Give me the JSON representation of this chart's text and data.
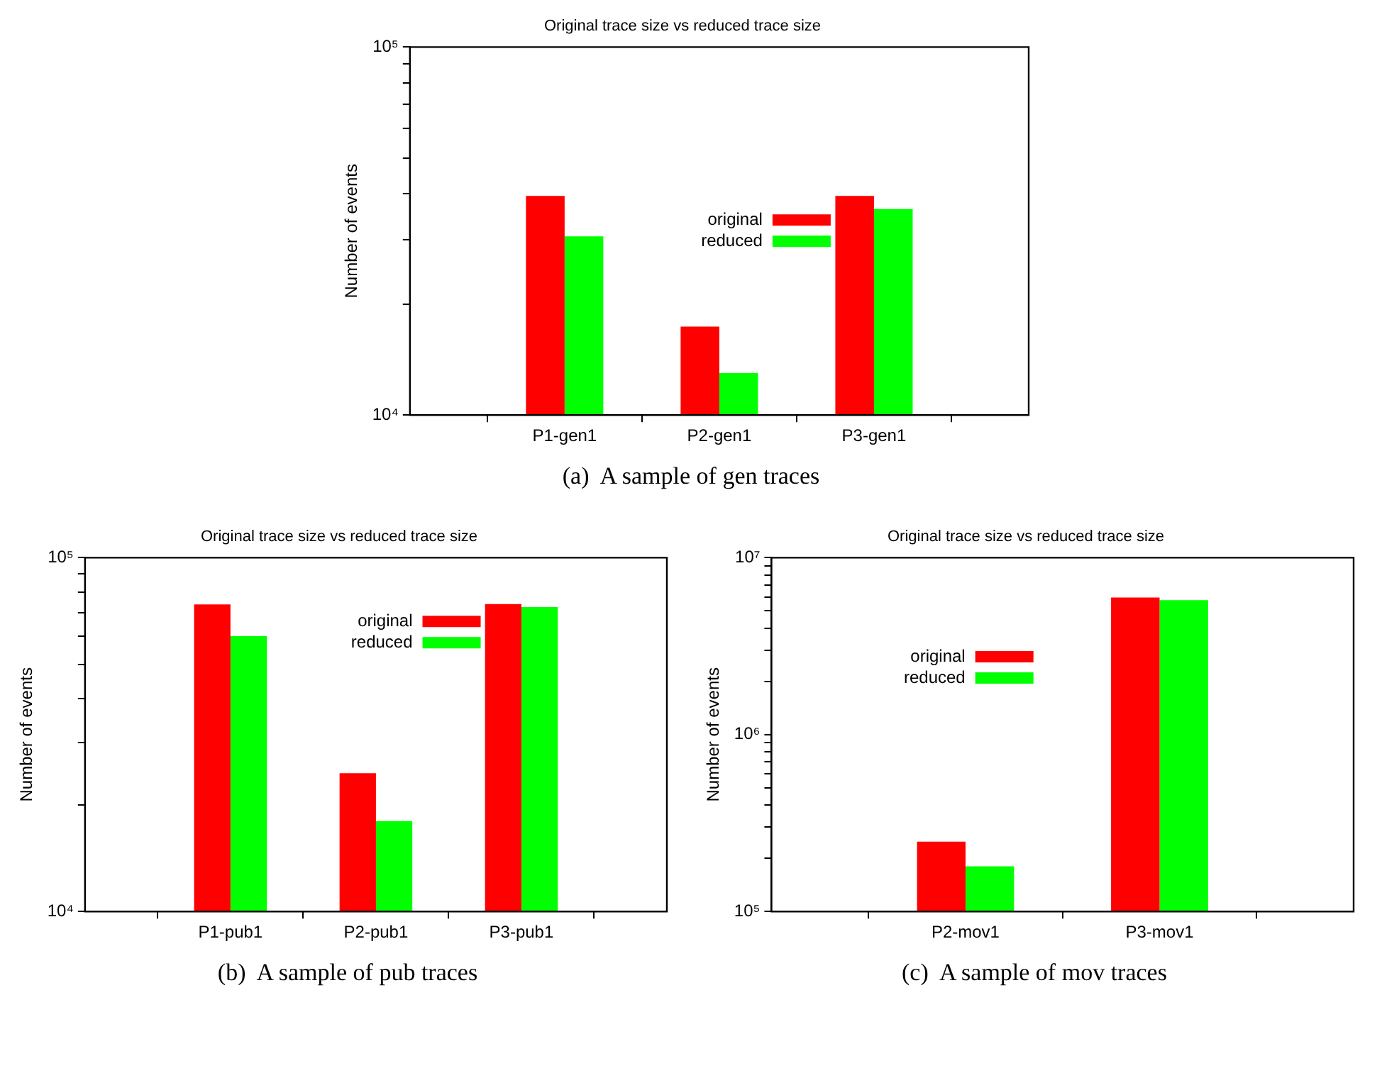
{
  "chart_data": [
    {
      "type": "bar",
      "title": "Original trace size vs reduced trace size",
      "ylabel": "Number of events",
      "categories": [
        null,
        "P1-gen1",
        "P2-gen1",
        "P3-gen1",
        null
      ],
      "series": [
        {
          "name": "original",
          "color": "#ff0000",
          "values": [
            null,
            39400,
            17400,
            39400,
            null
          ]
        },
        {
          "name": "reduced",
          "color": "#00ff00",
          "values": [
            null,
            30600,
            13000,
            36300,
            null
          ]
        }
      ],
      "log": "y",
      "ylim": [
        10000,
        100000
      ],
      "yticks": [
        {
          "value": 10000,
          "label": "10⁴"
        },
        {
          "value": 20000,
          "label": null
        },
        {
          "value": 30000,
          "label": null
        },
        {
          "value": 40000,
          "label": null
        },
        {
          "value": 50000,
          "label": null
        },
        {
          "value": 60000,
          "label": null
        },
        {
          "value": 70000,
          "label": null
        },
        {
          "value": 80000,
          "label": null
        },
        {
          "value": 90000,
          "label": null
        },
        {
          "value": 100000,
          "label": "10⁵"
        }
      ],
      "legend": "center",
      "annotations": [
        "(a)  A sample of gen traces"
      ]
    },
    {
      "type": "bar",
      "title": "Original trace size vs reduced trace size",
      "ylabel": "Number of events",
      "categories": [
        null,
        "P1-pub1",
        "P2-pub1",
        "P3-pub1",
        null
      ],
      "series": [
        {
          "name": "original",
          "color": "#ff0000",
          "values": [
            null,
            73800,
            24600,
            74000,
            null
          ]
        },
        {
          "name": "reduced",
          "color": "#00ff00",
          "values": [
            null,
            60000,
            18000,
            72500,
            null
          ]
        }
      ],
      "log": "y",
      "ylim": [
        10000,
        100000
      ],
      "yticks": [
        {
          "value": 10000,
          "label": "10⁴"
        },
        {
          "value": 20000,
          "label": null
        },
        {
          "value": 30000,
          "label": null
        },
        {
          "value": 40000,
          "label": null
        },
        {
          "value": 50000,
          "label": null
        },
        {
          "value": 60000,
          "label": null
        },
        {
          "value": 70000,
          "label": null
        },
        {
          "value": 80000,
          "label": null
        },
        {
          "value": 90000,
          "label": null
        },
        {
          "value": 100000,
          "label": "10⁵"
        }
      ],
      "legend": "top right",
      "annotations": [
        "(b)  A sample of pub traces"
      ]
    },
    {
      "type": "bar",
      "title": "Original trace size vs reduced trace size",
      "ylabel": "Number of events",
      "categories": [
        null,
        "P2-mov1",
        "P3-mov1",
        null
      ],
      "series": [
        {
          "name": "original",
          "color": "#ff0000",
          "values": [
            null,
            248000,
            5960000,
            null
          ]
        },
        {
          "name": "reduced",
          "color": "#00ff00",
          "values": [
            null,
            180000,
            5750000,
            null
          ]
        }
      ],
      "log": "y",
      "ylim": [
        100000,
        10000000
      ],
      "yticks": [
        {
          "value": 100000,
          "label": "10⁵"
        },
        {
          "value": 200000,
          "label": null
        },
        {
          "value": 300000,
          "label": null
        },
        {
          "value": 400000,
          "label": null
        },
        {
          "value": 500000,
          "label": null
        },
        {
          "value": 600000,
          "label": null
        },
        {
          "value": 700000,
          "label": null
        },
        {
          "value": 800000,
          "label": null
        },
        {
          "value": 900000,
          "label": null
        },
        {
          "value": 1000000,
          "label": "10⁶"
        },
        {
          "value": 2000000,
          "label": null
        },
        {
          "value": 3000000,
          "label": null
        },
        {
          "value": 4000000,
          "label": null
        },
        {
          "value": 5000000,
          "label": null
        },
        {
          "value": 6000000,
          "label": null
        },
        {
          "value": 7000000,
          "label": null
        },
        {
          "value": 8000000,
          "label": null
        },
        {
          "value": 9000000,
          "label": null
        },
        {
          "value": 10000000,
          "label": "10⁷"
        }
      ],
      "legend": "top left",
      "annotations": [
        "(c)  A sample of mov traces"
      ]
    }
  ]
}
